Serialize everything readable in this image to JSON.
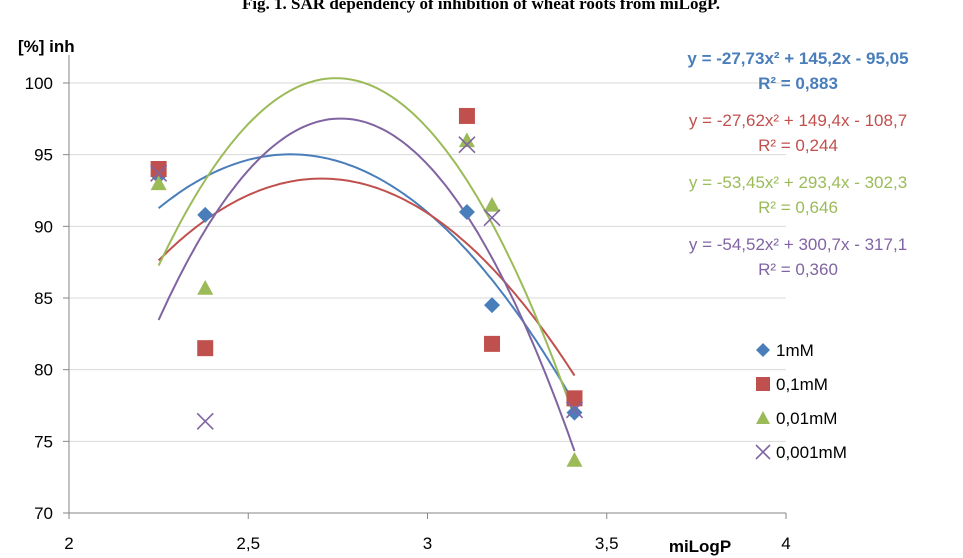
{
  "chart_data": {
    "type": "scatter",
    "title": "Fig. 1. SAR dependency of inhibition of wheat roots from miLogP.",
    "xlabel": "miLogP",
    "ylabel": "[%] inh",
    "xlim": [
      2,
      4
    ],
    "ylim": [
      70,
      102
    ],
    "x_ticks": [
      "2",
      "2,5",
      "3",
      "3,5",
      "4"
    ],
    "y_ticks": [
      "70",
      "75",
      "80",
      "85",
      "90",
      "95",
      "100"
    ],
    "grid": "horizontal",
    "legend_position": "right",
    "series": [
      {
        "name": "1mM",
        "marker": "diamond",
        "color": "#4a7ebb",
        "points": [
          [
            2.25,
            93.5
          ],
          [
            2.38,
            90.8
          ],
          [
            3.11,
            91.0
          ],
          [
            3.18,
            84.5
          ],
          [
            3.41,
            77.0
          ]
        ],
        "trend": {
          "a": -27.73,
          "b": 145.2,
          "c": -95.05
        },
        "equation": "y = -27,73x² + 145,2x - 95,05",
        "r2": "R² = 0,883",
        "eq_bold": true
      },
      {
        "name": "0,1mM",
        "marker": "square",
        "color": "#c0504d",
        "points": [
          [
            2.25,
            94.0
          ],
          [
            2.38,
            81.5
          ],
          [
            3.11,
            97.7
          ],
          [
            3.18,
            81.8
          ],
          [
            3.41,
            78.0
          ]
        ],
        "trend": {
          "a": -27.62,
          "b": 149.4,
          "c": -108.7
        },
        "equation": "y = -27,62x² + 149,4x - 108,7",
        "r2": "R² = 0,244",
        "eq_bold": false
      },
      {
        "name": "0,01mM",
        "marker": "triangle",
        "color": "#9bbb59",
        "points": [
          [
            2.25,
            93.0
          ],
          [
            2.38,
            85.7
          ],
          [
            3.11,
            96.0
          ],
          [
            3.18,
            91.5
          ],
          [
            3.41,
            73.7
          ]
        ],
        "trend": {
          "a": -53.45,
          "b": 293.4,
          "c": -302.3
        },
        "equation": "y = -53,45x² + 293,4x - 302,3",
        "r2": "R² = 0,646",
        "eq_bold": false
      },
      {
        "name": "0,001mM",
        "marker": "x",
        "color": "#8064a2",
        "points": [
          [
            2.25,
            93.7
          ],
          [
            2.38,
            76.4
          ],
          [
            3.11,
            95.7
          ],
          [
            3.18,
            90.6
          ],
          [
            3.41,
            77.2
          ]
        ],
        "trend": {
          "a": -54.52,
          "b": 300.7,
          "c": -317.1
        },
        "equation": "y = -54,52x² + 300,7x - 317,1",
        "r2": "R² = 0,360",
        "eq_bold": false
      }
    ]
  }
}
